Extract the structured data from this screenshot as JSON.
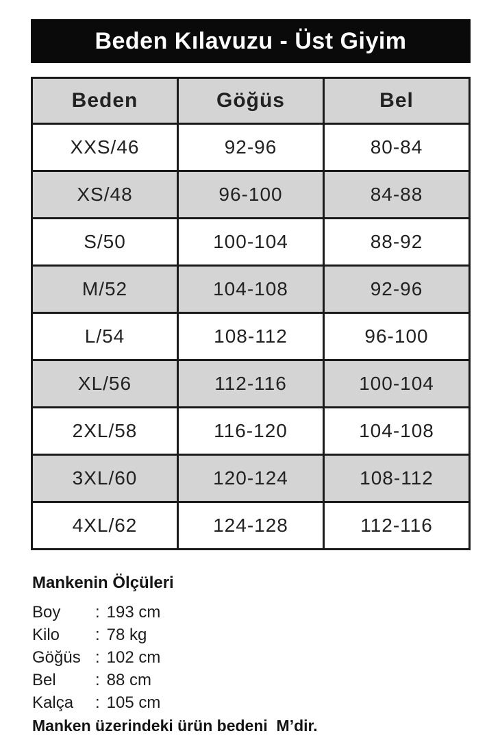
{
  "header": {
    "title": "Beden Kılavuzu - Üst Giyim",
    "bg_color": "#0a0a0a",
    "text_color": "#ffffff"
  },
  "table": {
    "columns": [
      "Beden",
      "Göğüs",
      "Bel"
    ],
    "rows": [
      [
        "XXS/46",
        "92-96",
        "80-84"
      ],
      [
        "XS/48",
        "96-100",
        "84-88"
      ],
      [
        "S/50",
        "100-104",
        "88-92"
      ],
      [
        "M/52",
        "104-108",
        "92-96"
      ],
      [
        "L/54",
        "108-112",
        "96-100"
      ],
      [
        "XL/56",
        "112-116",
        "100-104"
      ],
      [
        "2XL/58",
        "116-120",
        "104-108"
      ],
      [
        "3XL/60",
        "120-124",
        "108-112"
      ],
      [
        "4XL/62",
        "124-128",
        "112-116"
      ]
    ],
    "stripe_color": "#d4d4d4",
    "border_color": "#1a1a1a"
  },
  "model": {
    "heading": "Mankenin Ölçüleri",
    "separator": ":",
    "measurements": [
      {
        "label": "Boy",
        "value": "193 cm"
      },
      {
        "label": "Kilo",
        "value": "78 kg"
      },
      {
        "label": "Göğüs",
        "value": "102 cm"
      },
      {
        "label": "Bel",
        "value": "88 cm"
      },
      {
        "label": "Kalça",
        "value": "105 cm"
      }
    ],
    "note": "Manken üzerindeki ürün bedeni  M’dir."
  }
}
